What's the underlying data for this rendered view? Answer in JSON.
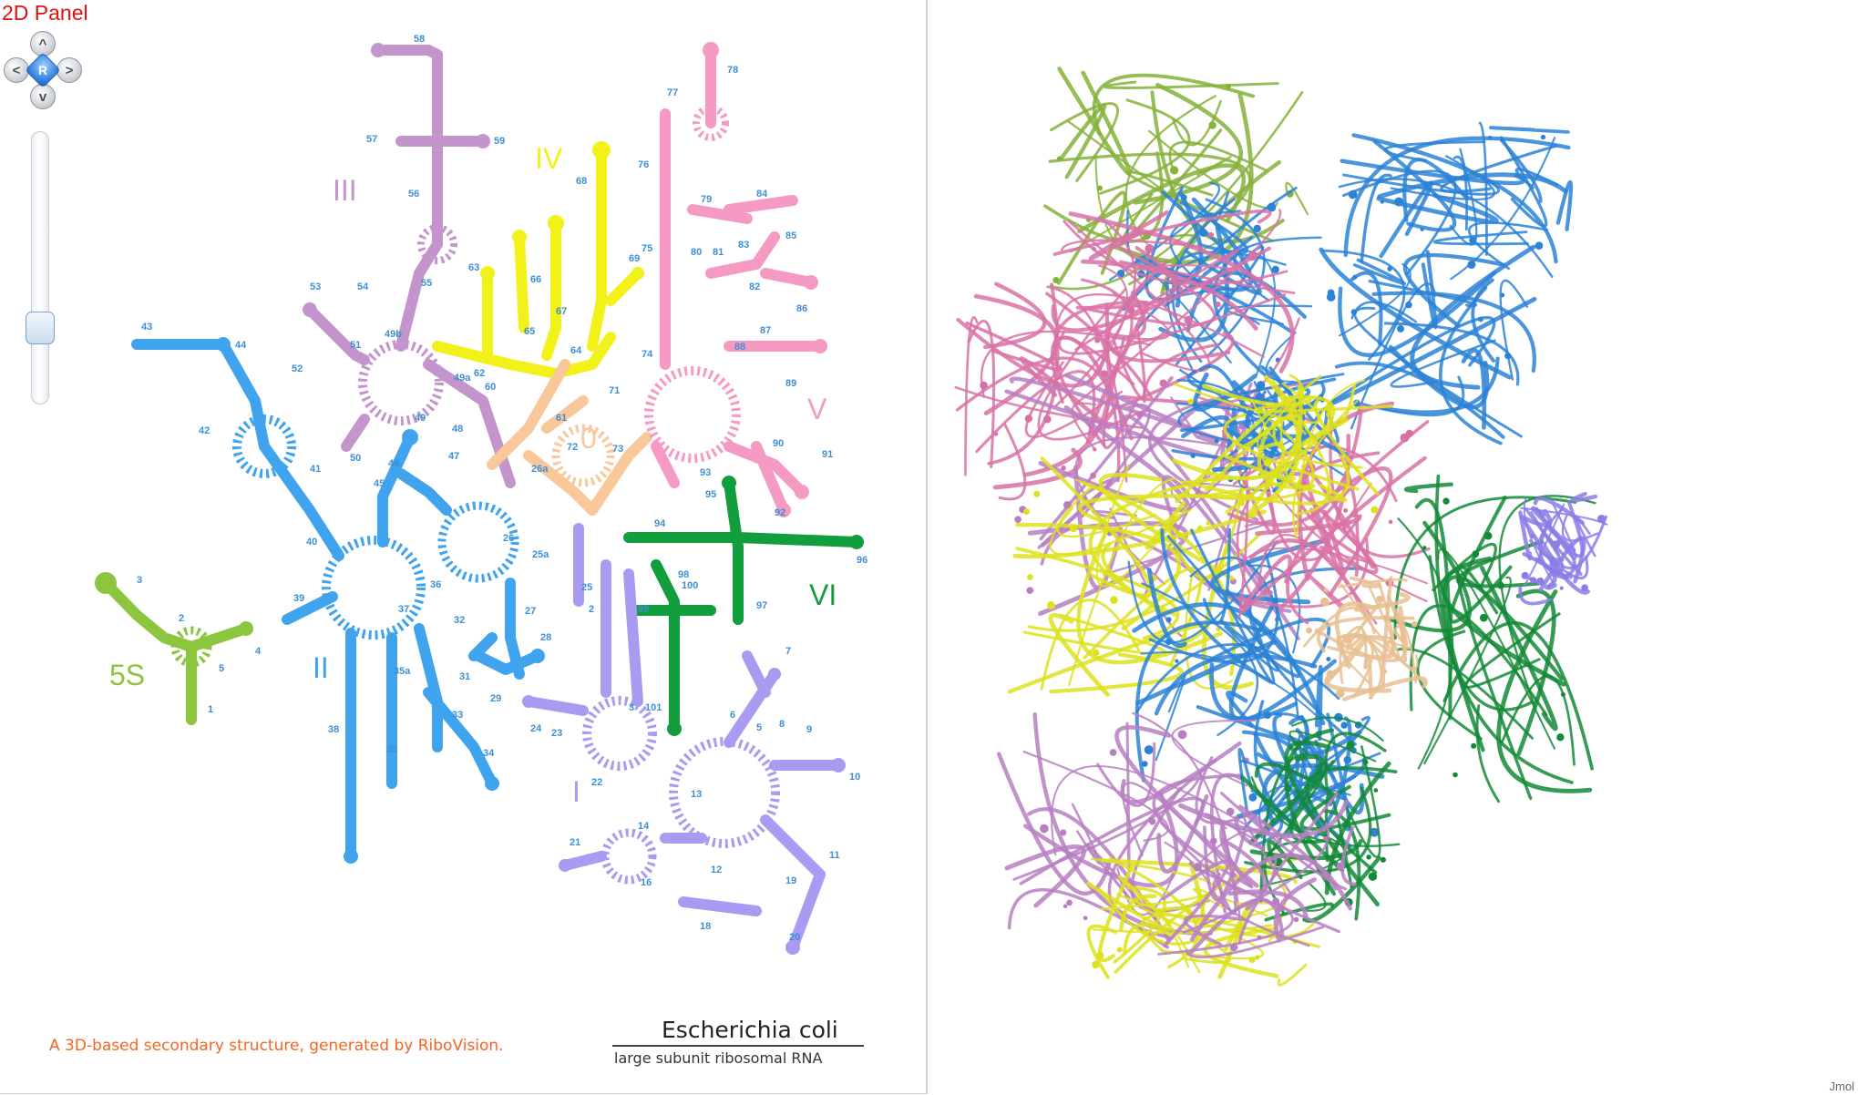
{
  "panel_2d": {
    "title": "2D Panel",
    "nav": {
      "center_label": "R",
      "up": "^",
      "down": "v",
      "left": "<",
      "right": ">"
    },
    "domain_labels": {
      "d0": "0",
      "dI": "I",
      "dII": "II",
      "dIII": "III",
      "dIV": "IV",
      "dV": "V",
      "dVI": "VI",
      "d5S": "5S"
    },
    "colors": {
      "d0": "#f9c89a",
      "dI": "#a99bf2",
      "dII": "#3fa3ee",
      "dIII": "#c495cc",
      "dIV": "#f2f21a",
      "dV": "#f59ac2",
      "dVI": "#129e3c",
      "d5S": "#8cc63f",
      "helix_number": "#3e8fd6",
      "residue_number": "#8b2a2a"
    },
    "helix_numbers": {
      "h1": "1",
      "h2": "2",
      "h3": "3",
      "h4": "4",
      "h5": "5",
      "h6": "6",
      "h7": "7",
      "h8": "8",
      "h9": "9",
      "h10": "10",
      "h11": "11",
      "h12": "12",
      "h13": "13",
      "h14": "14",
      "h16": "16",
      "h18": "18",
      "h19": "19",
      "h20": "20",
      "h21": "21",
      "h22": "22",
      "h23": "23",
      "h24": "24",
      "h25": "25",
      "h25a": "25a",
      "h26": "26",
      "h26a": "26a",
      "h27": "27",
      "h28": "28",
      "h29": "29",
      "h31": "31",
      "h32": "32",
      "h33": "33",
      "h34": "34",
      "h35": "35",
      "h35a": "35a",
      "h36": "36",
      "h37": "37",
      "h38": "38",
      "h39": "39",
      "h40": "40",
      "h41": "41",
      "h42": "42",
      "h43": "43",
      "h44": "44",
      "h45": "45",
      "h46": "46",
      "h47": "47",
      "h48": "48",
      "h49": "49",
      "h49a": "49a",
      "h49b": "49b",
      "h50": "50",
      "h51": "51",
      "h52": "52",
      "h53": "53",
      "h54": "54",
      "h55": "55",
      "h56": "56",
      "h57": "57",
      "h58": "58",
      "h59": "59",
      "h60": "60",
      "h61": "61",
      "h62": "62",
      "h63": "63",
      "h64": "64",
      "h65": "65",
      "h66": "66",
      "h67": "67",
      "h68": "68",
      "h69": "69",
      "h71": "71",
      "h72": "72",
      "h73": "73",
      "h74": "74",
      "h75": "75",
      "h76": "76",
      "h77": "77",
      "h78": "78",
      "h79": "79",
      "h80": "80",
      "h81": "81",
      "h82": "82",
      "h83": "83",
      "h84": "84",
      "h85": "85",
      "h86": "86",
      "h87": "87",
      "h88": "88",
      "h89": "89",
      "h90": "90",
      "h91": "91",
      "h92": "92",
      "h93": "93",
      "h94": "94",
      "h95": "95",
      "h96": "96",
      "h97": "97",
      "h98": "98",
      "h99": "99",
      "h100": "100",
      "h101": "101",
      "s1": "1",
      "s2": "2",
      "s3": "3",
      "s4": "4",
      "s5": "5"
    },
    "credit": "A 3D-based secondary structure, generated by RiboVision.",
    "caption_title": "Escherichia coli",
    "caption_subtitle": "large subunit ribosomal RNA"
  },
  "panel_3d": {
    "viewer_label": "Jmol",
    "colors": {
      "dI": "#8a7de6",
      "dII": "#2c82d6",
      "dIII": "#b77fc2",
      "dIV": "#dde21c",
      "dV": "#d872a6",
      "dVI": "#138a36",
      "d5S": "#85b23a",
      "d0": "#e8bf92"
    }
  }
}
